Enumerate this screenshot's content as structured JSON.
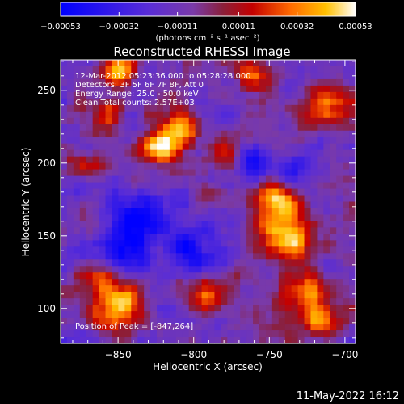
{
  "chart_data": {
    "type": "heatmap",
    "title": "Reconstructed RHESSI Image",
    "xlabel": "Heliocentric X (arcsec)",
    "ylabel": "Heliocentric Y (arcsec)",
    "xlim": [
      -888,
      -693
    ],
    "ylim": [
      76,
      271
    ],
    "x_ticks": [
      -850,
      -800,
      -750,
      -700
    ],
    "x_tick_labels": [
      "−850",
      "−800",
      "−750",
      "−700"
    ],
    "y_ticks": [
      100,
      150,
      200,
      250
    ],
    "y_tick_labels": [
      "100",
      "150",
      "200",
      "250"
    ],
    "colorbar": {
      "range": [
        -0.00053,
        0.00053
      ],
      "ticks": [
        -0.00053,
        -0.00032,
        -0.00011,
        0.00011,
        0.00032,
        0.00053
      ],
      "tick_labels": [
        "−0.00053",
        "−0.00032",
        "−0.00011",
        "0.00011",
        "0.00032",
        "0.00053"
      ],
      "units_label": "(photons cm⁻² s⁻¹ asec⁻²)",
      "colormap": [
        "#0000ff",
        "#5a2dd6",
        "#7a3aa8",
        "#8a1f3a",
        "#c40000",
        "#ff6a00",
        "#ffc000",
        "#ffffff"
      ]
    },
    "annotations": {
      "time": "12-Mar-2012 05:23:36.000 to 05:28:28.000",
      "detectors": "Detectors: 3F 5F 6F 7F 8F, Att 0",
      "energy": "Energy Range: 25.0 - 50.0 keV",
      "method": "Clean    Total counts: 2.57E+03",
      "peak": "Position of Peak = [-847,264]"
    },
    "peak_position": [
      -847,
      264
    ],
    "bright_sources": [
      {
        "x": -822,
        "y": 210,
        "intensity": 0.9,
        "sigma": 10
      },
      {
        "x": -810,
        "y": 225,
        "intensity": 0.7,
        "sigma": 9
      },
      {
        "x": -847,
        "y": 264,
        "intensity": 1.0,
        "sigma": 7
      },
      {
        "x": -860,
        "y": 233,
        "intensity": 0.65,
        "sigma": 8
      },
      {
        "x": -745,
        "y": 175,
        "intensity": 0.85,
        "sigma": 12
      },
      {
        "x": -738,
        "y": 148,
        "intensity": 0.9,
        "sigma": 12
      },
      {
        "x": -727,
        "y": 110,
        "intensity": 0.8,
        "sigma": 11
      },
      {
        "x": -715,
        "y": 90,
        "intensity": 0.75,
        "sigma": 9
      },
      {
        "x": -850,
        "y": 100,
        "intensity": 0.9,
        "sigma": 11
      },
      {
        "x": -860,
        "y": 120,
        "intensity": 0.7,
        "sigma": 8
      },
      {
        "x": -712,
        "y": 240,
        "intensity": 0.75,
        "sigma": 9
      },
      {
        "x": -760,
        "y": 260,
        "intensity": 0.6,
        "sigma": 8
      },
      {
        "x": -790,
        "y": 110,
        "intensity": 0.55,
        "sigma": 8
      },
      {
        "x": -780,
        "y": 210,
        "intensity": 0.5,
        "sigma": 8
      },
      {
        "x": -873,
        "y": 198,
        "intensity": 0.5,
        "sigma": 7
      }
    ],
    "dark_regions": [
      {
        "x": -835,
        "y": 160,
        "intensity": -0.85,
        "sigma": 14
      },
      {
        "x": -850,
        "y": 135,
        "intensity": -0.6,
        "sigma": 10
      },
      {
        "x": -800,
        "y": 140,
        "intensity": -0.6,
        "sigma": 12
      },
      {
        "x": -760,
        "y": 200,
        "intensity": -0.45,
        "sigma": 9
      },
      {
        "x": -730,
        "y": 195,
        "intensity": -0.5,
        "sigma": 9
      }
    ]
  },
  "footer": {
    "date": "11-May-2022 16:12"
  }
}
